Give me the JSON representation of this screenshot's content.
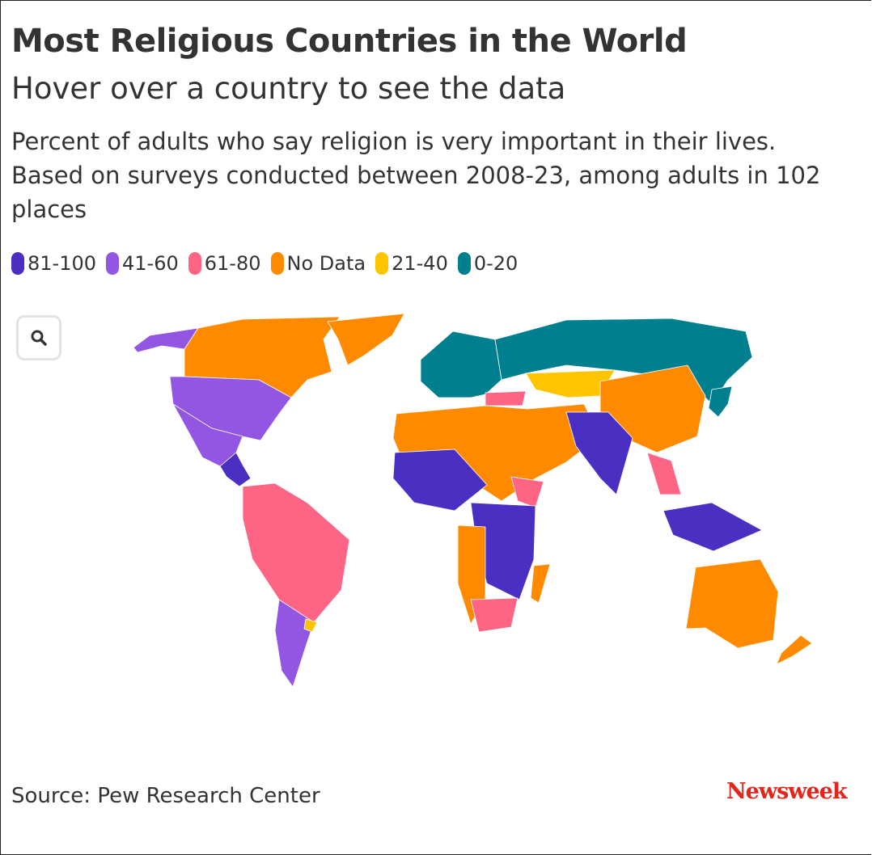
{
  "header": {
    "title": "Most Religious Countries in the World",
    "subtitle": "Hover over a country to see the data",
    "description": "Percent of adults who say religion is very important in their lives. Based on surveys conducted between 2008-23, among adults in 102 places"
  },
  "legend": [
    {
      "id": "81-100",
      "label": "81-100",
      "color": "#4a2fc2"
    },
    {
      "id": "41-60",
      "label": "41-60",
      "color": "#9356e3"
    },
    {
      "id": "61-80",
      "label": "61-80",
      "color": "#fe6585"
    },
    {
      "id": "nodata",
      "label": "No Data",
      "color": "#ff8a00"
    },
    {
      "id": "21-40",
      "label": "21-40",
      "color": "#fdc400"
    },
    {
      "id": "0-20",
      "label": "0-20",
      "color": "#00808f"
    }
  ],
  "map": {
    "zoom_icon": "search-icon",
    "regions": [
      {
        "region": "Alaska / United States",
        "category": "41-60"
      },
      {
        "region": "Canada",
        "category": "nodata"
      },
      {
        "region": "Greenland",
        "category": "nodata"
      },
      {
        "region": "United States",
        "category": "41-60"
      },
      {
        "region": "Mexico",
        "category": "41-60"
      },
      {
        "region": "Central America",
        "category": "81-100"
      },
      {
        "region": "Brazil and northern South America",
        "category": "61-80"
      },
      {
        "region": "Argentina and Chile",
        "category": "41-60"
      },
      {
        "region": "Uruguay",
        "category": "21-40"
      },
      {
        "region": "Europe",
        "category": "0-20"
      },
      {
        "region": "Russia",
        "category": "0-20"
      },
      {
        "region": "Central Asia",
        "category": "21-40"
      },
      {
        "region": "China",
        "category": "nodata"
      },
      {
        "region": "Japan",
        "category": "0-20"
      },
      {
        "region": "Turkey",
        "category": "61-80"
      },
      {
        "region": "Middle East and North Africa",
        "category": "nodata"
      },
      {
        "region": "West Africa",
        "category": "81-100"
      },
      {
        "region": "Ethiopia",
        "category": "61-80"
      },
      {
        "region": "India",
        "category": "81-100"
      },
      {
        "region": "Southeast Asia",
        "category": "61-80"
      },
      {
        "region": "Indonesia",
        "category": "81-100"
      },
      {
        "region": "Central and East Africa",
        "category": "81-100"
      },
      {
        "region": "Southern Africa",
        "category": "nodata"
      },
      {
        "region": "South Africa",
        "category": "61-80"
      },
      {
        "region": "Madagascar",
        "category": "nodata"
      },
      {
        "region": "Australia",
        "category": "nodata"
      },
      {
        "region": "New Zealand",
        "category": "nodata"
      }
    ]
  },
  "footer": {
    "source": "Source: Pew Research Center",
    "logo": "Newsweek"
  }
}
